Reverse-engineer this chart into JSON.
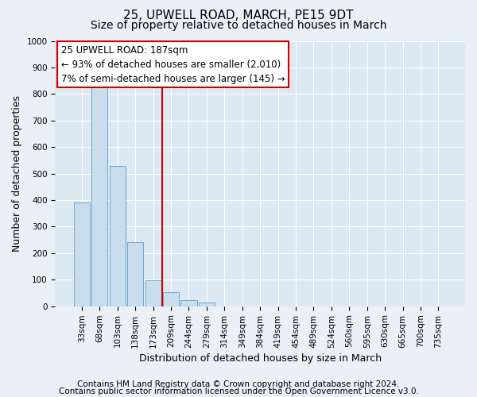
{
  "title": "25, UPWELL ROAD, MARCH, PE15 9DT",
  "subtitle": "Size of property relative to detached houses in March",
  "xlabel": "Distribution of detached houses by size in March",
  "ylabel": "Number of detached properties",
  "bar_labels": [
    "33sqm",
    "68sqm",
    "103sqm",
    "138sqm",
    "173sqm",
    "209sqm",
    "244sqm",
    "279sqm",
    "314sqm",
    "349sqm",
    "384sqm",
    "419sqm",
    "454sqm",
    "489sqm",
    "524sqm",
    "560sqm",
    "595sqm",
    "630sqm",
    "665sqm",
    "700sqm",
    "735sqm"
  ],
  "bar_values": [
    390,
    830,
    530,
    242,
    98,
    52,
    22,
    14,
    0,
    0,
    0,
    0,
    0,
    0,
    0,
    0,
    0,
    0,
    0,
    0,
    0
  ],
  "bar_color": "#c9dded",
  "bar_edge_color": "#6aaad4",
  "vline_color": "#cc0000",
  "box_edge_color": "#cc0000",
  "ylim": [
    0,
    1000
  ],
  "yticks": [
    0,
    100,
    200,
    300,
    400,
    500,
    600,
    700,
    800,
    900,
    1000
  ],
  "annotation_line1": "25 UPWELL ROAD: 187sqm",
  "annotation_line2": "← 93% of detached houses are smaller (2,010)",
  "annotation_line3": "7% of semi-detached houses are larger (145) →",
  "footnote1": "Contains HM Land Registry data © Crown copyright and database right 2024.",
  "footnote2": "Contains public sector information licensed under the Open Government Licence v3.0.",
  "background_color": "#eaf0f6",
  "plot_background_color": "#dce8f2",
  "grid_color": "#ffffff",
  "title_fontsize": 11,
  "subtitle_fontsize": 10,
  "axis_label_fontsize": 9,
  "tick_fontsize": 7.5,
  "annotation_fontsize": 8.5,
  "footnote_fontsize": 7.5
}
